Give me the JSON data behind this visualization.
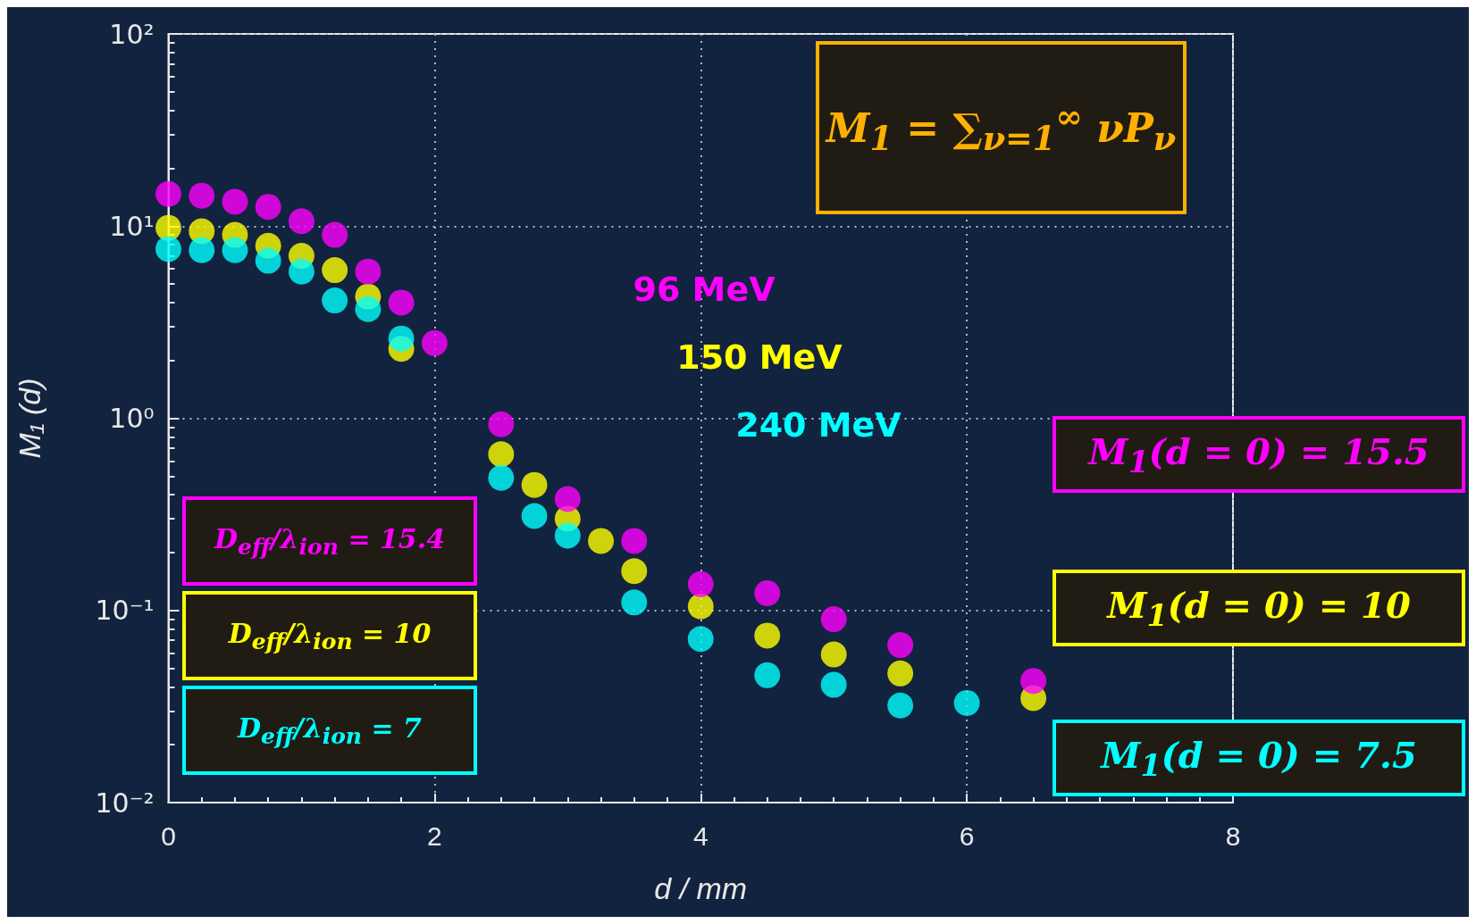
{
  "chart_data": {
    "type": "scatter",
    "xlabel": "d / mm",
    "ylabel": "M₁ (d)",
    "log": "y",
    "xlim": [
      0,
      8
    ],
    "xticks": [
      0,
      2,
      4,
      6,
      8
    ],
    "ylim": [
      0.01,
      100
    ],
    "yticks": [
      {
        "value": 0.01,
        "label": "10⁻²"
      },
      {
        "value": 0.1,
        "label": "10⁻¹"
      },
      {
        "value": 1,
        "label": "10⁰"
      },
      {
        "value": 10,
        "label": "10¹"
      },
      {
        "value": 100,
        "label": "10²"
      }
    ],
    "grid": true,
    "legend": false,
    "marker": "circle",
    "series": [
      {
        "name": "96 MeV",
        "color": "#ff00ff",
        "x": [
          0,
          0.25,
          0.5,
          0.75,
          1,
          1.25,
          1.5,
          1.75,
          2,
          2.5,
          3,
          3.5,
          4,
          4.5,
          5,
          5.5,
          6.5
        ],
        "values": [
          14.7,
          14.4,
          13.4,
          12.6,
          10.6,
          9,
          5.8,
          4,
          2.46,
          0.93,
          0.38,
          0.23,
          0.137,
          0.123,
          0.09,
          0.066,
          0.043
        ]
      },
      {
        "name": "150 MeV",
        "color": "#ffff00",
        "x": [
          0,
          0.25,
          0.5,
          0.75,
          1,
          1.25,
          1.5,
          1.75,
          2.5,
          2.75,
          3,
          3.25,
          3.5,
          4,
          4.5,
          5,
          5.5,
          6.5
        ],
        "values": [
          9.8,
          9.4,
          9,
          7.9,
          7,
          5.9,
          4.3,
          2.3,
          0.65,
          0.45,
          0.3,
          0.23,
          0.16,
          0.105,
          0.074,
          0.059,
          0.047,
          0.035
        ]
      },
      {
        "name": "240 MeV",
        "color": "#00ffff",
        "x": [
          0,
          0.25,
          0.5,
          0.75,
          1,
          1.25,
          1.5,
          1.75,
          2.5,
          2.75,
          3,
          3.5,
          4,
          4.5,
          5,
          5.5,
          6
        ],
        "values": [
          7.6,
          7.5,
          7.5,
          6.6,
          5.8,
          4.1,
          3.7,
          2.6,
          0.49,
          0.31,
          0.245,
          0.11,
          0.071,
          0.046,
          0.041,
          0.032,
          0.033
        ]
      }
    ],
    "annotations": [
      "M$_{1}$ = ∑$_{ν=1}$$^{∞}$ νP$_{ν}$",
      "D$_{eff}$/λ$_{ion}$ = 15.4",
      "D$_{eff}$/λ$_{ion}$ = 10",
      "D$_{eff}$/λ$_{ion}$ = 7",
      "M$_{1}$(d = 0) = 15.5",
      "M$_{1}$(d = 0) = 10",
      "M$_{1}$(d = 0) = 7.5"
    ]
  }
}
